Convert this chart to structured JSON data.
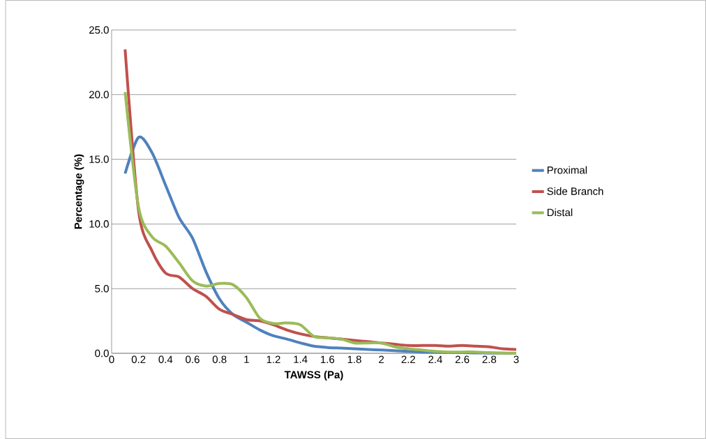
{
  "chart_data": {
    "type": "line",
    "xlabel": "TAWSS (Pa)",
    "ylabel": "Percentage (%)",
    "x": [
      0.1,
      0.2,
      0.3,
      0.4,
      0.5,
      0.6,
      0.7,
      0.8,
      0.9,
      1.0,
      1.1,
      1.2,
      1.3,
      1.4,
      1.5,
      1.6,
      1.7,
      1.8,
      1.9,
      2.0,
      2.1,
      2.2,
      2.3,
      2.4,
      2.5,
      2.6,
      2.7,
      2.8,
      2.9,
      3.0
    ],
    "series": [
      {
        "name": "Proximal",
        "color": "#4f81bd",
        "values": [
          13.9,
          16.7,
          15.5,
          13.0,
          10.5,
          8.9,
          6.3,
          4.2,
          3.0,
          2.4,
          1.8,
          1.35,
          1.1,
          0.8,
          0.55,
          0.45,
          0.4,
          0.35,
          0.3,
          0.25,
          0.2,
          0.15,
          0.1,
          0.08,
          0.05,
          0.05,
          0.03,
          0.02,
          0.01,
          0.0
        ]
      },
      {
        "name": "Side Branch",
        "color": "#c0504d",
        "values": [
          23.5,
          11.0,
          7.9,
          6.2,
          5.9,
          5.0,
          4.4,
          3.4,
          3.0,
          2.6,
          2.5,
          2.2,
          1.8,
          1.5,
          1.3,
          1.2,
          1.1,
          1.0,
          0.9,
          0.8,
          0.7,
          0.6,
          0.6,
          0.6,
          0.55,
          0.6,
          0.55,
          0.5,
          0.35,
          0.3
        ]
      },
      {
        "name": "Distal",
        "color": "#9bbb59",
        "values": [
          20.2,
          11.3,
          9.0,
          8.3,
          7.0,
          5.6,
          5.2,
          5.4,
          5.3,
          4.3,
          2.7,
          2.3,
          2.35,
          2.2,
          1.3,
          1.2,
          1.1,
          0.8,
          0.8,
          0.8,
          0.5,
          0.35,
          0.25,
          0.15,
          0.1,
          0.1,
          0.1,
          0.05,
          0.02,
          0.0
        ]
      }
    ],
    "xlim": [
      0,
      3
    ],
    "xticks": [
      0,
      0.2,
      0.4,
      0.6,
      0.8,
      1,
      1.2,
      1.4,
      1.6,
      1.8,
      2,
      2.2,
      2.4,
      2.6,
      2.8,
      3
    ],
    "ylim": [
      0,
      25
    ],
    "yticks": [
      {
        "value": 0,
        "label": "0.0"
      },
      {
        "value": 5,
        "label": "5.0"
      },
      {
        "value": 10,
        "label": "10.0"
      },
      {
        "value": 15,
        "label": "15.0"
      },
      {
        "value": 20,
        "label": "20.0"
      },
      {
        "value": 25,
        "label": "25.0"
      }
    ],
    "grid": "y",
    "legend": "right",
    "marker": "none",
    "line_style": "solid"
  }
}
